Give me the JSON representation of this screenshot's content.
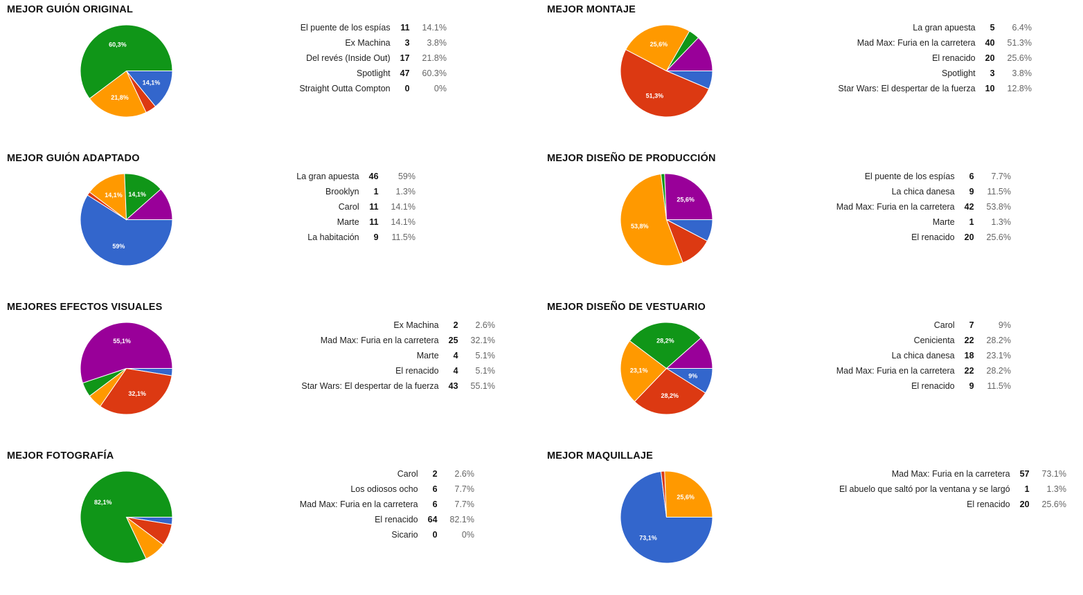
{
  "colors": [
    "#3366cc",
    "#dc3912",
    "#ff9900",
    "#109618",
    "#990099"
  ],
  "chart_data": [
    {
      "type": "pie",
      "title": "MEJOR GUIÓN ORIGINAL",
      "categories": [
        "El puente de los espías",
        "Ex Machina",
        "Del revés (Inside Out)",
        "Spotlight",
        "Straight Outta Compton"
      ],
      "values": [
        11,
        3,
        17,
        47,
        0
      ],
      "percents": [
        "14.1%",
        "3.8%",
        "21.8%",
        "60.3%",
        "0%"
      ],
      "slice_labels": [
        "14,1%",
        "",
        "21,8%",
        "60,3%",
        ""
      ]
    },
    {
      "type": "pie",
      "title": "MEJOR MONTAJE",
      "categories": [
        "La gran apuesta",
        "Mad Max: Furia en la carretera",
        "El renacido",
        "Spotlight",
        "Star Wars: El despertar de la fuerza"
      ],
      "values": [
        5,
        40,
        20,
        3,
        10
      ],
      "percents": [
        "6.4%",
        "51.3%",
        "25.6%",
        "3.8%",
        "12.8%"
      ],
      "slice_labels": [
        "",
        "51,3%",
        "25,6%",
        "",
        ""
      ]
    },
    {
      "type": "pie",
      "title": "MEJOR GUIÓN ADAPTADO",
      "categories": [
        "La gran apuesta",
        "Brooklyn",
        "Carol",
        "Marte",
        "La habitación"
      ],
      "values": [
        46,
        1,
        11,
        11,
        9
      ],
      "percents": [
        "59%",
        "1.3%",
        "14.1%",
        "14.1%",
        "11.5%"
      ],
      "slice_labels": [
        "59%",
        "",
        "14,1%",
        "14,1%",
        ""
      ]
    },
    {
      "type": "pie",
      "title": "MEJOR DISEÑO DE PRODUCCIÓN",
      "categories": [
        "El puente de los espías",
        "La chica danesa",
        "Mad Max: Furia en la carretera",
        "Marte",
        "El renacido"
      ],
      "values": [
        6,
        9,
        42,
        1,
        20
      ],
      "percents": [
        "7.7%",
        "11.5%",
        "53.8%",
        "1.3%",
        "25.6%"
      ],
      "slice_labels": [
        "",
        "",
        "53,8%",
        "",
        "25,6%"
      ]
    },
    {
      "type": "pie",
      "title": "MEJORES EFECTOS VISUALES",
      "categories": [
        "Ex Machina",
        "Mad Max: Furia en la carretera",
        "Marte",
        "El renacido",
        "Star Wars: El despertar de la fuerza"
      ],
      "values": [
        2,
        25,
        4,
        4,
        43
      ],
      "percents": [
        "2.6%",
        "32.1%",
        "5.1%",
        "5.1%",
        "55.1%"
      ],
      "slice_labels": [
        "",
        "32,1%",
        "",
        "",
        "55,1%"
      ]
    },
    {
      "type": "pie",
      "title": "MEJOR DISEÑO DE VESTUARIO",
      "categories": [
        "Carol",
        "Cenicienta",
        "La chica danesa",
        "Mad Max: Furia en la carretera",
        "El renacido"
      ],
      "values": [
        7,
        22,
        18,
        22,
        9
      ],
      "percents": [
        "9%",
        "28.2%",
        "23.1%",
        "28.2%",
        "11.5%"
      ],
      "slice_labels": [
        "9%",
        "28,2%",
        "23,1%",
        "28,2%",
        ""
      ]
    },
    {
      "type": "pie",
      "title": "MEJOR FOTOGRAFÍA",
      "categories": [
        "Carol",
        "Los odiosos ocho",
        "Mad Max: Furia en la carretera",
        "El renacido",
        "Sicario"
      ],
      "values": [
        2,
        6,
        6,
        64,
        0
      ],
      "percents": [
        "2.6%",
        "7.7%",
        "7.7%",
        "82.1%",
        "0%"
      ],
      "slice_labels": [
        "",
        "",
        "",
        "82,1%",
        ""
      ]
    },
    {
      "type": "pie",
      "title": "MEJOR MAQUILLAJE",
      "categories": [
        "Mad Max: Furia en la carretera",
        "El abuelo que saltó por la ventana y se largó",
        "El renacido"
      ],
      "values": [
        57,
        1,
        20
      ],
      "percents": [
        "73.1%",
        "1.3%",
        "25.6%"
      ],
      "slice_labels": [
        "73,1%",
        "",
        "25,6%"
      ]
    }
  ]
}
